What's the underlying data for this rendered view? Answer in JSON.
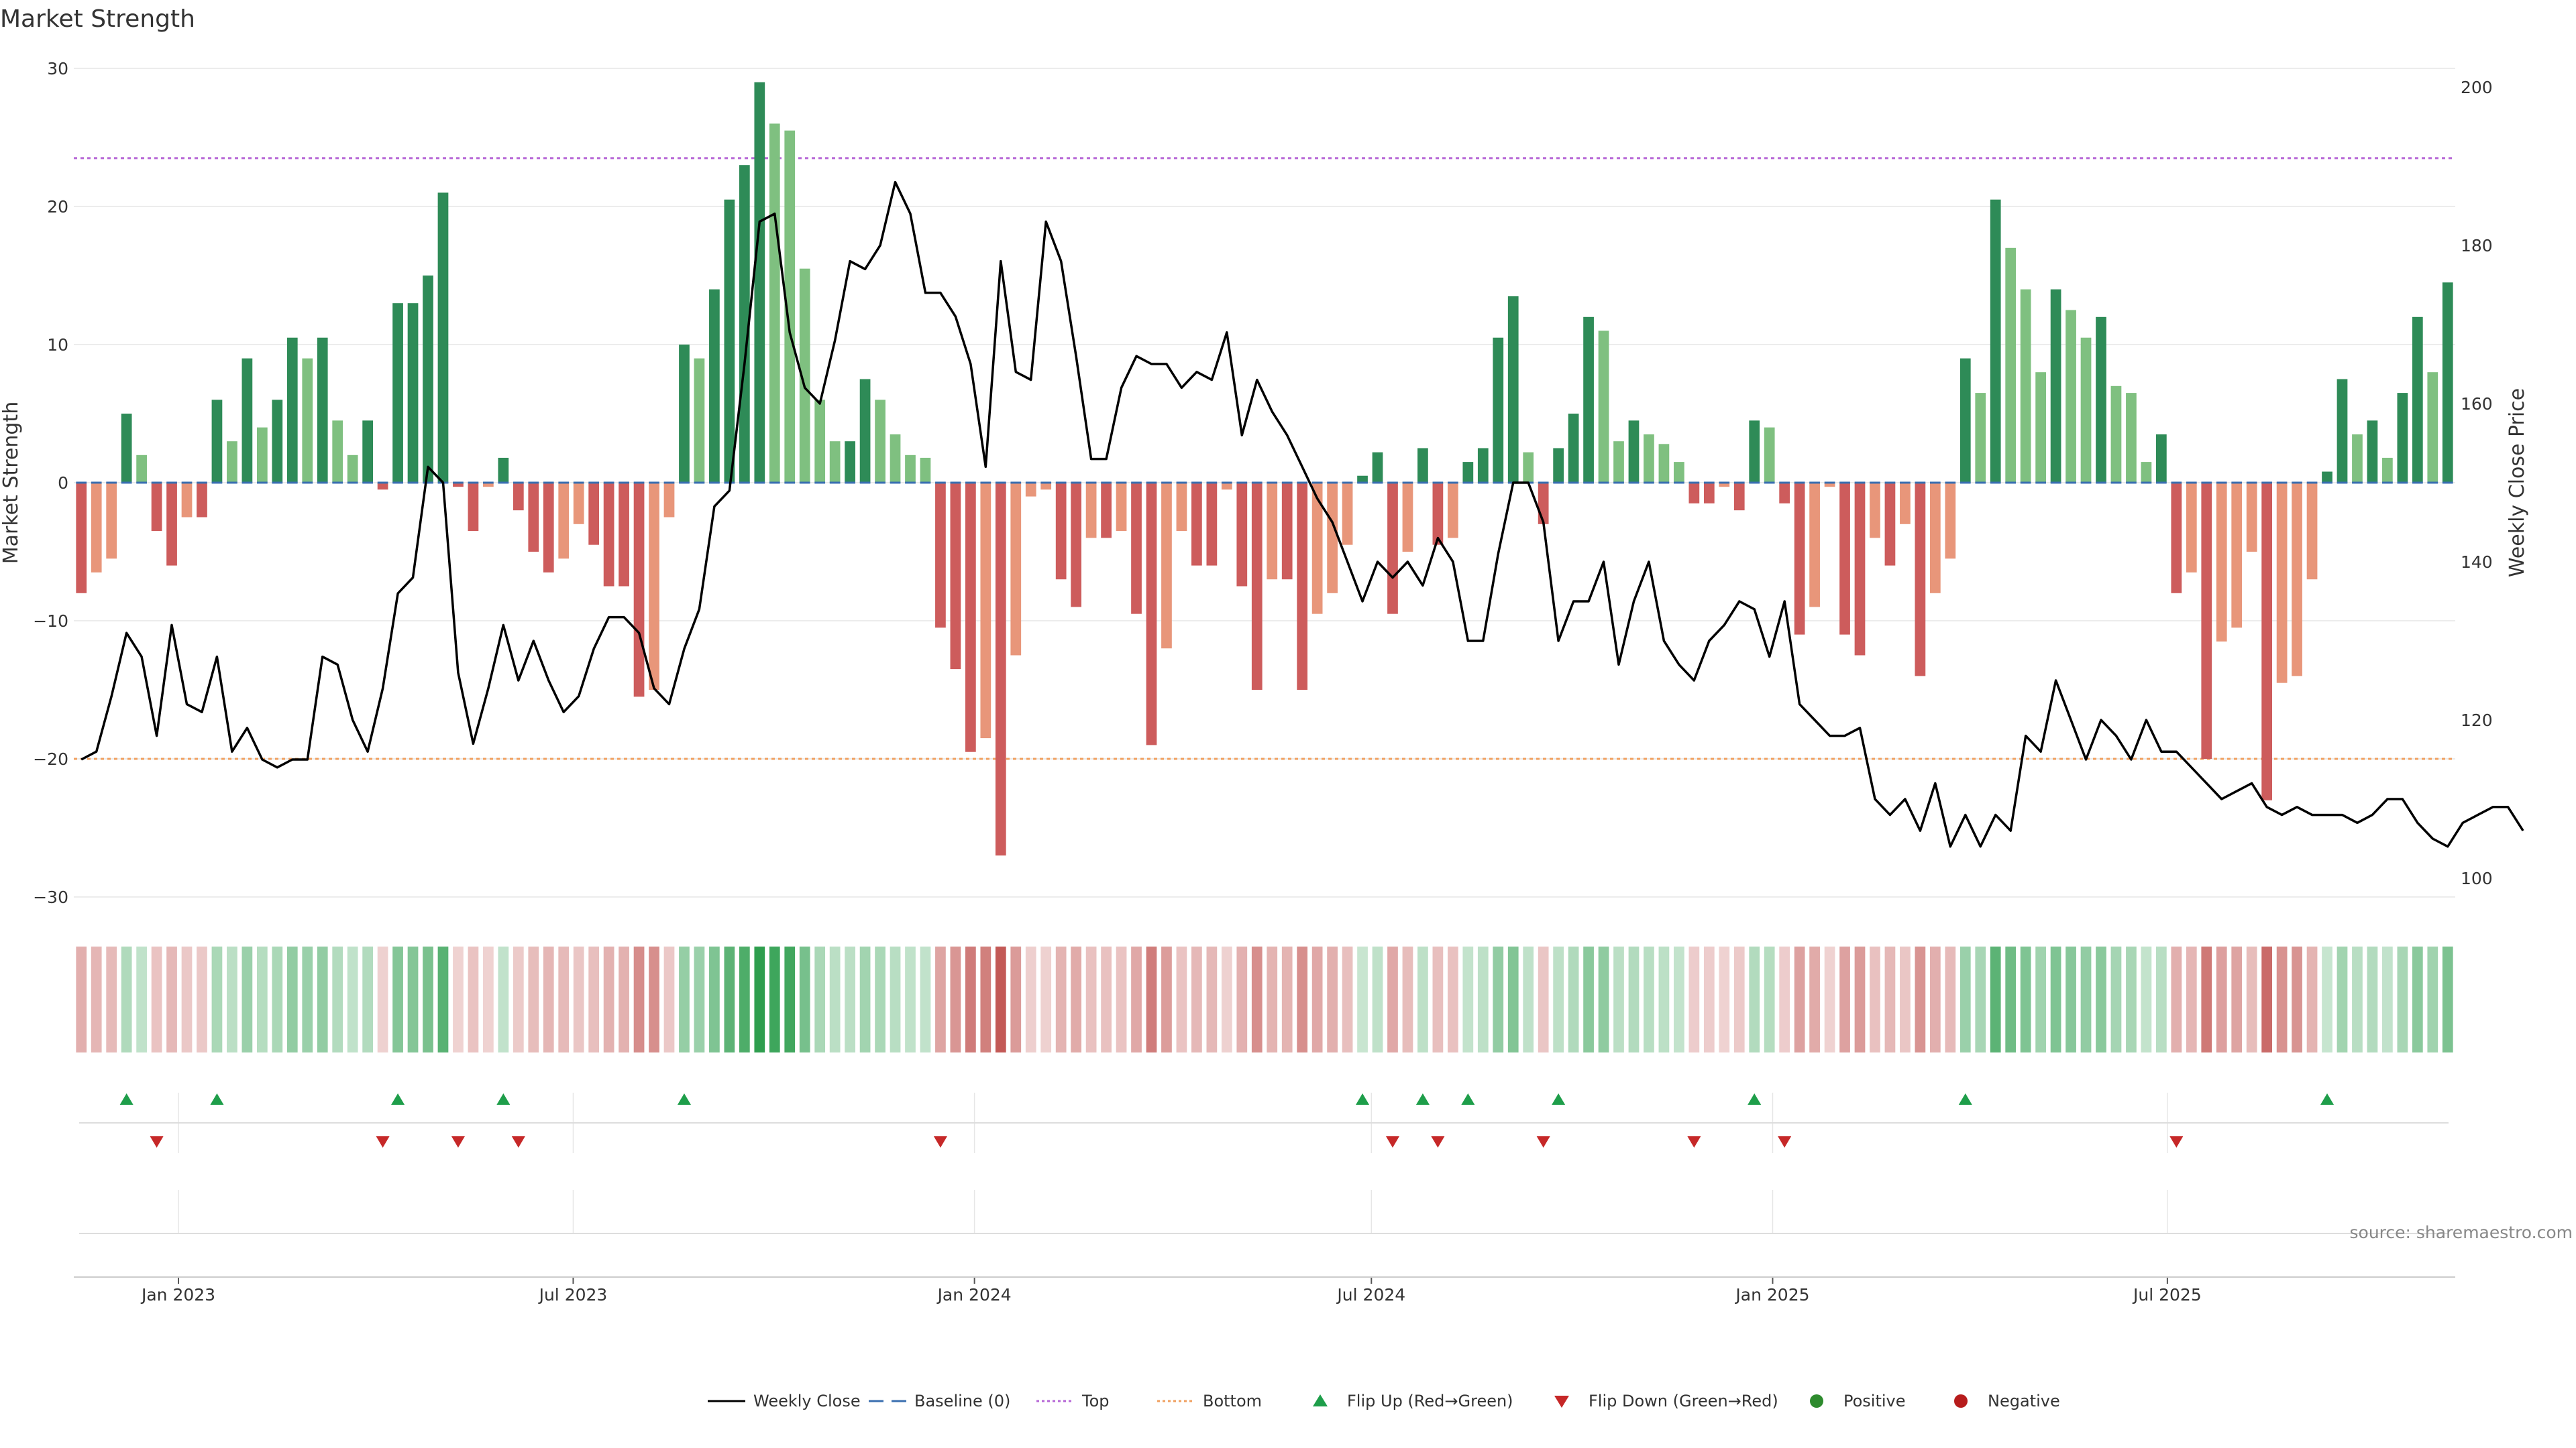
{
  "chart_data": {
    "type": "bar",
    "title": "Market Strength",
    "ylabel_left": "Market Strength",
    "ylabel_right": "Weekly Close Price",
    "source": "source: sharemaestro.com",
    "ylim_left": [
      -30,
      30
    ],
    "yticks_left": [
      30,
      20,
      10,
      0,
      -10,
      -20,
      -30
    ],
    "ytick_labels_left": [
      "30",
      "20",
      "10",
      "0",
      "−10",
      "−20",
      "−30"
    ],
    "ylim_right": [
      100,
      200
    ],
    "yticks_right": [
      200,
      180,
      160,
      140,
      120,
      100
    ],
    "ytick_labels_right": [
      "200",
      "180",
      "160",
      "140",
      "120",
      "100"
    ],
    "x_start": "2022-11-14",
    "x_end": "2025-11-10",
    "x_ticks": [
      {
        "date": "2023-01-01",
        "label": "Jan 2023"
      },
      {
        "date": "2023-07-01",
        "label": "Jul 2023"
      },
      {
        "date": "2024-01-01",
        "label": "Jan 2024"
      },
      {
        "date": "2024-07-01",
        "label": "Jul 2024"
      },
      {
        "date": "2025-01-01",
        "label": "Jan 2025"
      },
      {
        "date": "2025-07-01",
        "label": "Jul 2025"
      }
    ],
    "reference_lines": [
      {
        "name": "Top",
        "value": 23.5,
        "color": "#b667d6"
      },
      {
        "name": "Bottom",
        "value": -20,
        "color": "#f0a060"
      }
    ],
    "grid": true,
    "legend_position": "bottom",
    "legend": [
      {
        "label": "Weekly Close",
        "marker": "line",
        "color": "#000000"
      },
      {
        "label": "Baseline (0)",
        "marker": "dash",
        "color": "#3a6fb0"
      },
      {
        "label": "Top",
        "marker": "dot-line",
        "color": "#b667d6"
      },
      {
        "label": "Bottom",
        "marker": "dot-line",
        "color": "#f0a060"
      },
      {
        "label": "Flip Up (Red→Green)",
        "marker": "triangle-up",
        "color": "#1e9e4a"
      },
      {
        "label": "Flip Down (Green→Red)",
        "marker": "triangle-down",
        "color": "#c62828"
      },
      {
        "label": "Positive",
        "marker": "circle",
        "color": "#2e8b2e"
      },
      {
        "label": "Negative",
        "marker": "circle",
        "color": "#b71c1c"
      }
    ],
    "colors": {
      "pos_strong": "#2e8b57",
      "pos_weak": "#7fc080",
      "neg_strong": "#cd5c5c",
      "neg_weak": "#e8967a",
      "flip_up": "#1e9e4a",
      "flip_down": "#c62828",
      "price_line": "#000000",
      "baseline": "#3a6fb0"
    },
    "strength": [
      -8,
      -6.5,
      -5.5,
      5,
      2,
      -3.5,
      -6,
      -2.5,
      -2.5,
      6,
      3,
      9,
      4,
      6,
      10.5,
      9,
      10.5,
      4.5,
      2,
      4.5,
      -0.5,
      13,
      13,
      15,
      21,
      -0.3,
      -3.5,
      -0.3,
      1.8,
      -2,
      -5,
      -6.5,
      -5.5,
      -3,
      -4.5,
      -7.5,
      -7.5,
      -15.5,
      -15,
      -2.5,
      10,
      9,
      14,
      20.5,
      23,
      29,
      26,
      25.5,
      15.5,
      6,
      3,
      3,
      7.5,
      6,
      3.5,
      2,
      1.8,
      -10.5,
      -13.5,
      -19.5,
      -18.5,
      -27,
      -12.5,
      -1,
      -0.5,
      -7,
      -9,
      -4,
      -4,
      -3.5,
      -9.5,
      -19,
      -12,
      -3.5,
      -6,
      -6,
      -0.5,
      -7.5,
      -15,
      -7,
      -7,
      -15,
      -9.5,
      -8,
      -4.5,
      0.5,
      2.2,
      -9.5,
      -5,
      2.5,
      -4.5,
      -4,
      1.5,
      2.5,
      10.5,
      13.5,
      2.2,
      -3,
      2.5,
      5,
      12,
      11,
      3,
      4.5,
      3.5,
      2.8,
      1.5,
      -1.5,
      -1.5,
      -0.3,
      -2,
      4.5,
      4,
      -1.5,
      -11,
      -9,
      -0.3,
      -11,
      -12.5,
      -4,
      -6,
      -3,
      -14,
      -8,
      -5.5,
      9,
      6.5,
      20.5,
      17,
      14,
      8,
      14,
      12.5,
      10.5,
      12,
      7,
      6.5,
      1.5,
      3.5,
      -8,
      -6.5,
      -20,
      -11.5,
      -10.5,
      -5,
      -23,
      -14.5,
      -14,
      -7,
      0.8,
      7.5,
      3.5,
      4.5,
      1.8,
      6.5,
      12,
      8,
      14.5
    ],
    "weekly_close": [
      115,
      116,
      123,
      131,
      128,
      118,
      132,
      122,
      121,
      128,
      116,
      119,
      115,
      114,
      115,
      115,
      128,
      127,
      120,
      116,
      124,
      136,
      138,
      152,
      150,
      126,
      117,
      124,
      132,
      125,
      130,
      125,
      121,
      123,
      129,
      133,
      133,
      131,
      124,
      122,
      129,
      134,
      147,
      149,
      165,
      183,
      184,
      169,
      162,
      160,
      168,
      178,
      177,
      180,
      188,
      184,
      174,
      174,
      171,
      165,
      152,
      178,
      164,
      163,
      183,
      178,
      166,
      153,
      153,
      162,
      166,
      165,
      165,
      162,
      164,
      163,
      169,
      156,
      163,
      159,
      156,
      152,
      148,
      145,
      140,
      135,
      140,
      138,
      140,
      137,
      143,
      140,
      130,
      130,
      141,
      150,
      150,
      145,
      130,
      135,
      135,
      140,
      127,
      135,
      140,
      130,
      127,
      125,
      130,
      132,
      135,
      134,
      128,
      135,
      122,
      120,
      118,
      118,
      119,
      110,
      108,
      110,
      106,
      112,
      104,
      108,
      104,
      108,
      106,
      118,
      116,
      125,
      120,
      115,
      120,
      118,
      115,
      120,
      116,
      116,
      114,
      112,
      110,
      111,
      112,
      109,
      108,
      109,
      108,
      108,
      108,
      107,
      108,
      110,
      110,
      107,
      105,
      104,
      107,
      108,
      109,
      109,
      106
    ]
  }
}
